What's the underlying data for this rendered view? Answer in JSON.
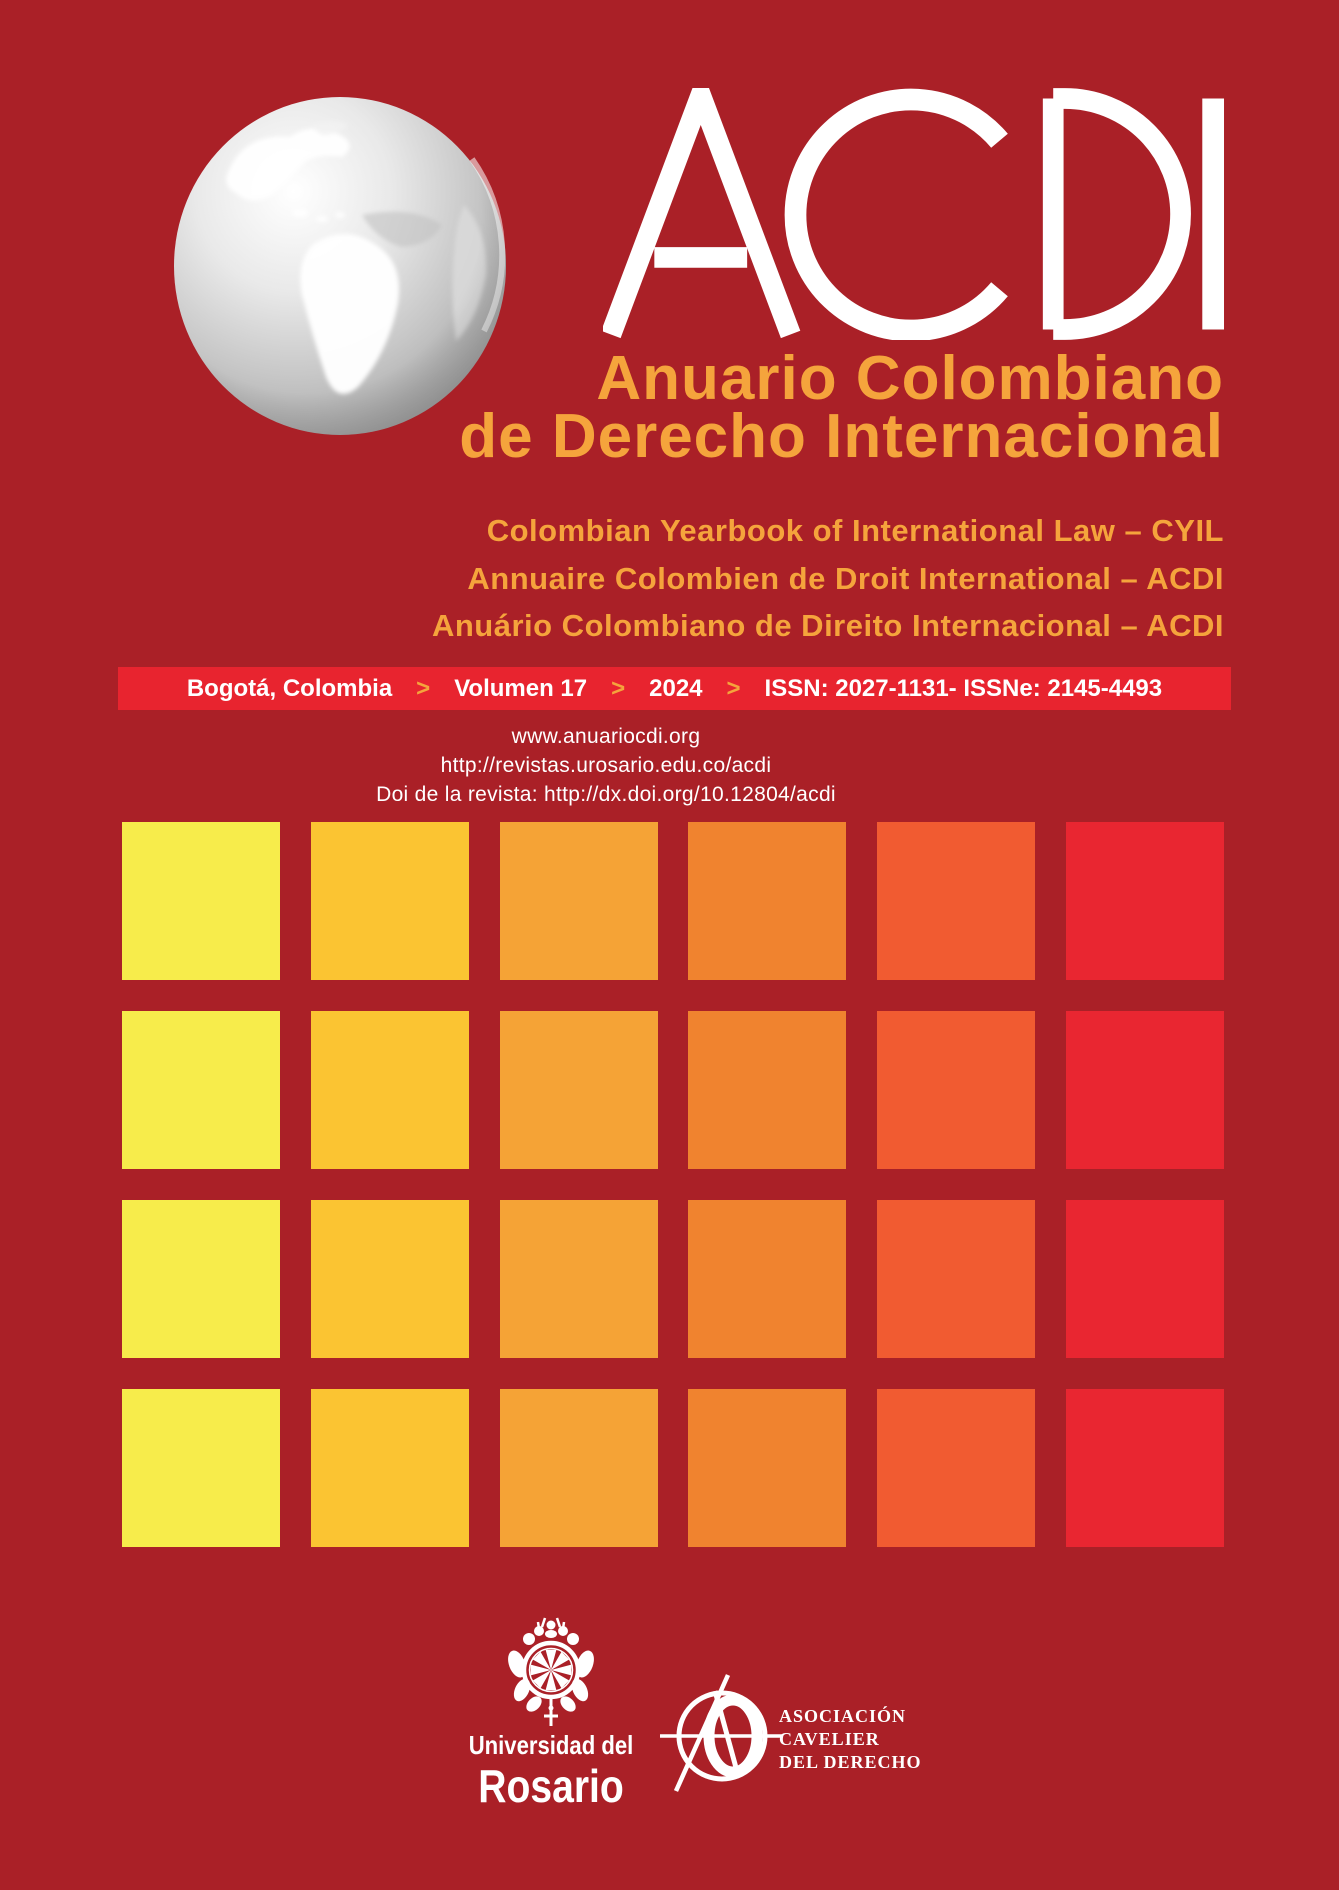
{
  "journal": {
    "acronym": "ACDI",
    "title_line1": "Anuario Colombiano",
    "title_line2": "de Derecho Internacional",
    "subtitles": [
      "Colombian Yearbook of International Law – CYIL",
      "Annuaire Colombien de Droit International – ACDI",
      "Anuário Colombiano de Direito Internacional – ACDI"
    ]
  },
  "banner": {
    "city": "Bogotá, Colombia",
    "separator": ">",
    "volume": "Volumen 17",
    "year": "2024",
    "issn": "ISSN: 2027-1131- ISSNe: 2145-4493"
  },
  "links": {
    "line1": "www.anuariocdi.org",
    "line2": "http://revistas.urosario.edu.co/acdi",
    "line3": "Doi de la revista: http://dx.doi.org/10.12804/acdi"
  },
  "grid": {
    "rows": 4,
    "columns": 6,
    "column_colors": [
      "#F7EC4B",
      "#FBC432",
      "#F5A336",
      "#F0832F",
      "#F15B31",
      "#E92631"
    ]
  },
  "footer": {
    "rosario": {
      "line1": "Universidad del",
      "line2": "Rosario"
    },
    "cavelier": {
      "line1": "ASOCIACIÓN",
      "line2": "CAVELIER",
      "line3": "DEL DERECHO"
    }
  },
  "colors": {
    "background": "#AA2027",
    "banner_red": "#E8242F",
    "accent_orange": "#F5A43C",
    "text_white": "#FFFFFF"
  }
}
